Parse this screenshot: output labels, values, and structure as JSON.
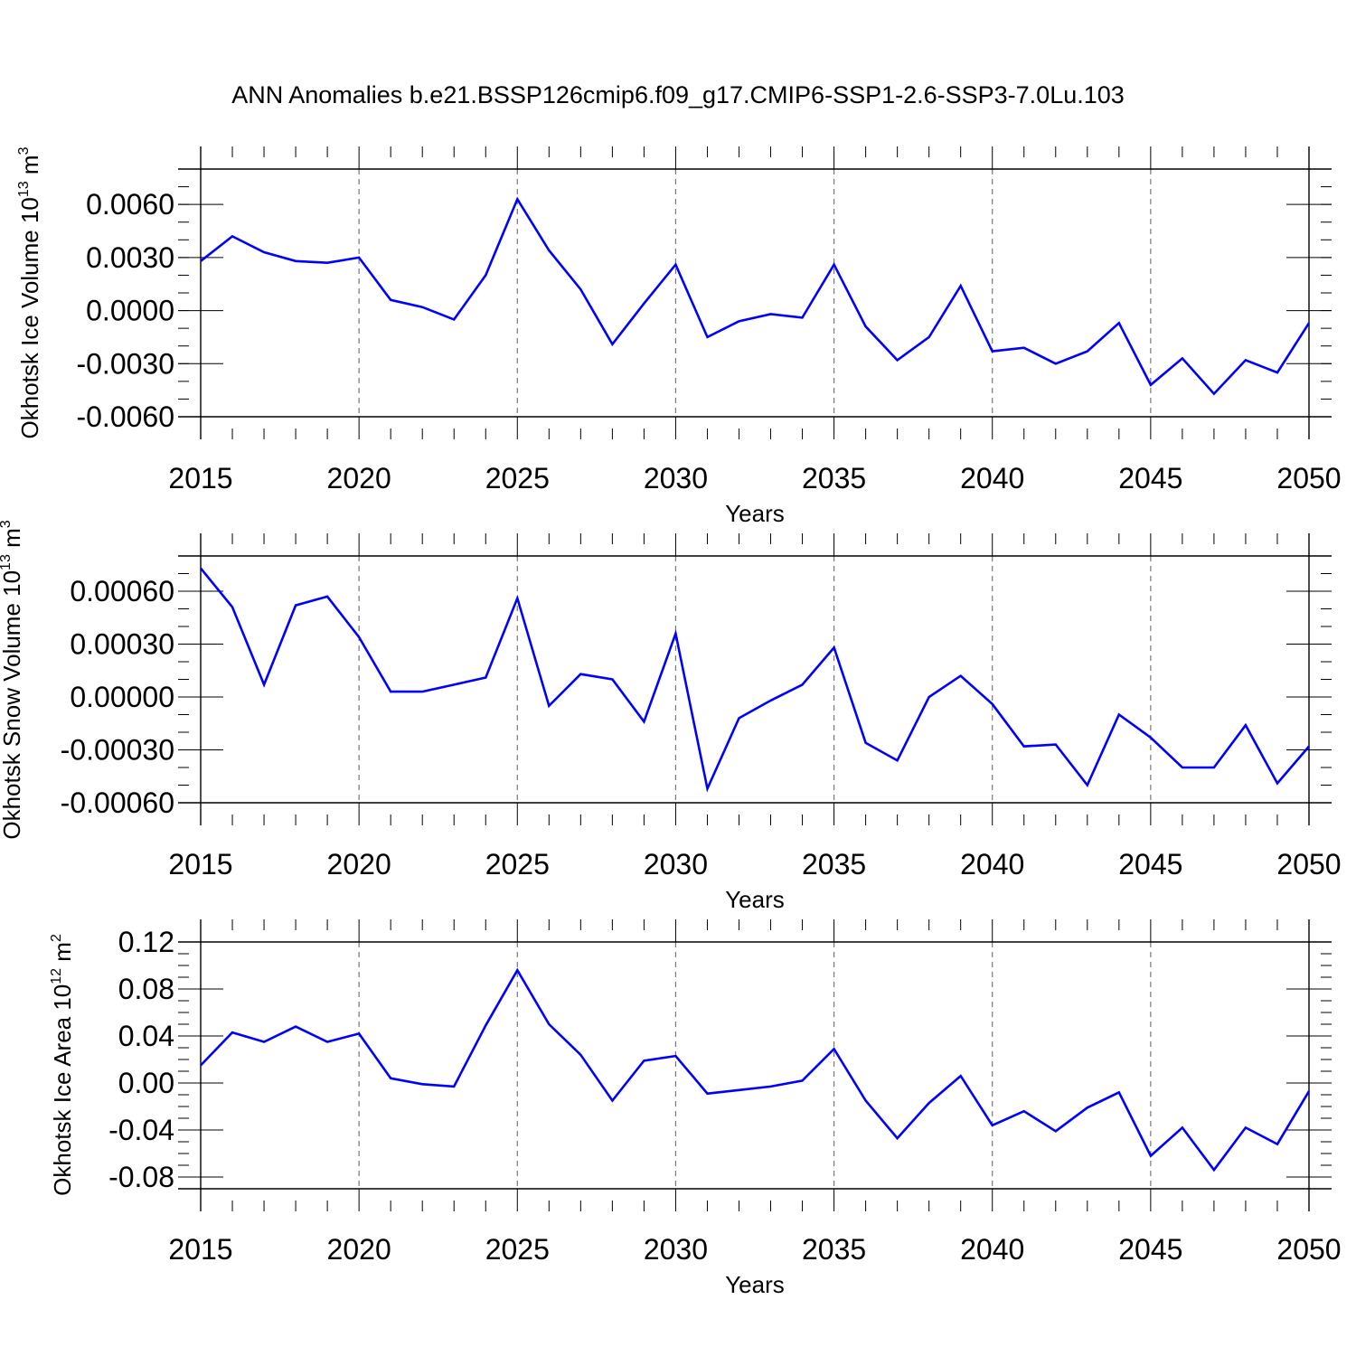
{
  "title": "ANN Anomalies b.e21.BSSP126cmip6.f09_g17.CMIP6-SSP1-2.6-SSP3-7.0Lu.103",
  "chart_data": [
    {
      "type": "line",
      "ylabel": "Okhotsk Ice Volume 10",
      "ylabel_sup": "13",
      "ylabel_unit": " m",
      "ylabel_unit_sup": "3",
      "xlabel": "Years",
      "xlim": [
        2015,
        2050
      ],
      "ylim": [
        -0.006,
        0.008
      ],
      "x_ticks": [
        "2015",
        "2020",
        "2025",
        "2030",
        "2035",
        "2040",
        "2045",
        "2050"
      ],
      "y_ticks": [
        {
          "value": 0.006,
          "label": "0.0060"
        },
        {
          "value": 0.003,
          "label": "0.0030"
        },
        {
          "value": 0.0,
          "label": "0.0000"
        },
        {
          "value": -0.003,
          "label": "-0.0030"
        },
        {
          "value": -0.006,
          "label": "-0.0060"
        }
      ],
      "y_minor_step": 0.001,
      "y_frame_top": 0.008,
      "grid": "dashed vertical lines at major x ticks",
      "color": "#0000ff",
      "x": [
        2015,
        2016,
        2017,
        2018,
        2019,
        2020,
        2021,
        2022,
        2023,
        2024,
        2025,
        2026,
        2027,
        2028,
        2029,
        2030,
        2031,
        2032,
        2033,
        2034,
        2035,
        2036,
        2037,
        2038,
        2039,
        2040,
        2041,
        2042,
        2043,
        2044,
        2045,
        2046,
        2047,
        2048,
        2049,
        2050
      ],
      "values": [
        0.0028,
        0.0042,
        0.0033,
        0.0028,
        0.0027,
        0.003,
        0.0006,
        0.0002,
        -0.0005,
        0.002,
        0.0063,
        0.0034,
        0.0012,
        -0.0019,
        0.0004,
        0.0026,
        -0.0015,
        -0.0006,
        -0.0002,
        -0.0004,
        0.0026,
        -0.0009,
        -0.0028,
        -0.0015,
        0.0014,
        -0.0023,
        -0.0021,
        -0.003,
        -0.0023,
        -0.0007,
        -0.0042,
        -0.0027,
        -0.0047,
        -0.0028,
        -0.0035,
        -0.0007
      ]
    },
    {
      "type": "line",
      "ylabel": "Okhotsk Snow Volume 10",
      "ylabel_sup": "13",
      "ylabel_unit": " m",
      "ylabel_unit_sup": "3",
      "xlabel": "Years",
      "xlim": [
        2015,
        2050
      ],
      "ylim": [
        -0.0006,
        0.0008
      ],
      "x_ticks": [
        "2015",
        "2020",
        "2025",
        "2030",
        "2035",
        "2040",
        "2045",
        "2050"
      ],
      "y_ticks": [
        {
          "value": 0.0006,
          "label": "0.00060"
        },
        {
          "value": 0.0003,
          "label": "0.00030"
        },
        {
          "value": 0.0,
          "label": "0.00000"
        },
        {
          "value": -0.0003,
          "label": "-0.00030"
        },
        {
          "value": -0.0006,
          "label": "-0.00060"
        }
      ],
      "y_minor_step": 0.0001,
      "y_frame_top": 0.0008,
      "grid": "dashed vertical lines at major x ticks",
      "color": "#0000ff",
      "x": [
        2015,
        2016,
        2017,
        2018,
        2019,
        2020,
        2021,
        2022,
        2023,
        2024,
        2025,
        2026,
        2027,
        2028,
        2029,
        2030,
        2031,
        2032,
        2033,
        2034,
        2035,
        2036,
        2037,
        2038,
        2039,
        2040,
        2041,
        2042,
        2043,
        2044,
        2045,
        2046,
        2047,
        2048,
        2049,
        2050
      ],
      "values": [
        0.00073,
        0.00051,
        7e-05,
        0.00052,
        0.00057,
        0.00034,
        3e-05,
        3e-05,
        7e-05,
        0.00011,
        0.00056,
        -5e-05,
        0.00013,
        0.0001,
        -0.00014,
        0.00036,
        -0.00052,
        -0.00012,
        -2e-05,
        7e-05,
        0.00028,
        -0.00026,
        -0.00036,
        0.0,
        0.00012,
        -4e-05,
        -0.00028,
        -0.00027,
        -0.0005,
        -0.0001,
        -0.00023,
        -0.0004,
        -0.0004,
        -0.00016,
        -0.00049,
        -0.00028
      ]
    },
    {
      "type": "line",
      "ylabel": "Okhotsk Ice Area 10",
      "ylabel_sup": "12",
      "ylabel_unit": " m",
      "ylabel_unit_sup": "2",
      "xlabel": "Years",
      "xlim": [
        2015,
        2050
      ],
      "ylim": [
        -0.09,
        0.12
      ],
      "x_ticks": [
        "2015",
        "2020",
        "2025",
        "2030",
        "2035",
        "2040",
        "2045",
        "2050"
      ],
      "y_ticks": [
        {
          "value": 0.12,
          "label": "0.12"
        },
        {
          "value": 0.08,
          "label": "0.08"
        },
        {
          "value": 0.04,
          "label": "0.04"
        },
        {
          "value": 0.0,
          "label": "0.00"
        },
        {
          "value": -0.04,
          "label": "-0.04"
        },
        {
          "value": -0.08,
          "label": "-0.08"
        }
      ],
      "y_minor_step": 0.01,
      "y_frame_top": 0.12,
      "grid": "dashed vertical lines at major x ticks",
      "color": "#0000ff",
      "x": [
        2015,
        2016,
        2017,
        2018,
        2019,
        2020,
        2021,
        2022,
        2023,
        2024,
        2025,
        2026,
        2027,
        2028,
        2029,
        2030,
        2031,
        2032,
        2033,
        2034,
        2035,
        2036,
        2037,
        2038,
        2039,
        2040,
        2041,
        2042,
        2043,
        2044,
        2045,
        2046,
        2047,
        2048,
        2049,
        2050
      ],
      "values": [
        0.015,
        0.043,
        0.035,
        0.048,
        0.035,
        0.042,
        0.004,
        -0.001,
        -0.003,
        0.049,
        0.096,
        0.05,
        0.024,
        -0.015,
        0.019,
        0.023,
        -0.009,
        -0.006,
        -0.003,
        0.002,
        0.029,
        -0.015,
        -0.047,
        -0.017,
        0.006,
        -0.036,
        -0.024,
        -0.041,
        -0.021,
        -0.008,
        -0.062,
        -0.038,
        -0.074,
        -0.038,
        -0.052,
        -0.007
      ]
    }
  ]
}
